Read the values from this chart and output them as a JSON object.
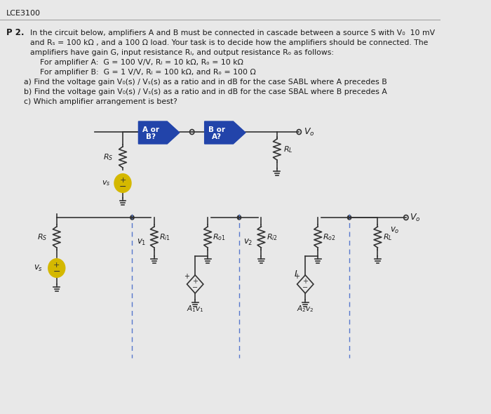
{
  "bg_color": "#e8e8e8",
  "text_color": "#1a1a1a",
  "header_text": "LCE3100",
  "problem_label": "P 2.",
  "problem_text_lines": [
    "In the circuit below, amplifiers A and B must be connected in cascade between a source S with V₀  10 mV",
    "and Rₛ = 100 kΩ , and a 100 Ω load. Your task is to decide how the amplifiers should be connected. The",
    "amplifiers have gain G, input resistance Rᵢ, and output resistance Rₒ as follows:",
    "    For amplifier A:  G = 100 V/V, Rᵢ = 10 kΩ, Rₒ = 10 kΩ",
    "    For amplifier B:  G = 1 V/V, Rᵢ = 100 kΩ, and Rₒ = 100 Ω",
    "a) Find the voltage gain V₀(s) / Vₛ(s) as a ratio and in dB for the case SABL where A precedes B",
    "b) Find the voltage gain V₀(s) / Vₛ(s) as a ratio and in dB for the case SBAL where B precedes A",
    "c) Which amplifier arrangement is best?"
  ],
  "block_color": "#2244aa",
  "block_text_color": "#ffffff",
  "wire_color": "#333333",
  "resistor_color": "#333333",
  "source_color": "#d4b800",
  "source_fill": "#f0d040",
  "dashed_color": "#5577cc",
  "ground_color": "#333333"
}
